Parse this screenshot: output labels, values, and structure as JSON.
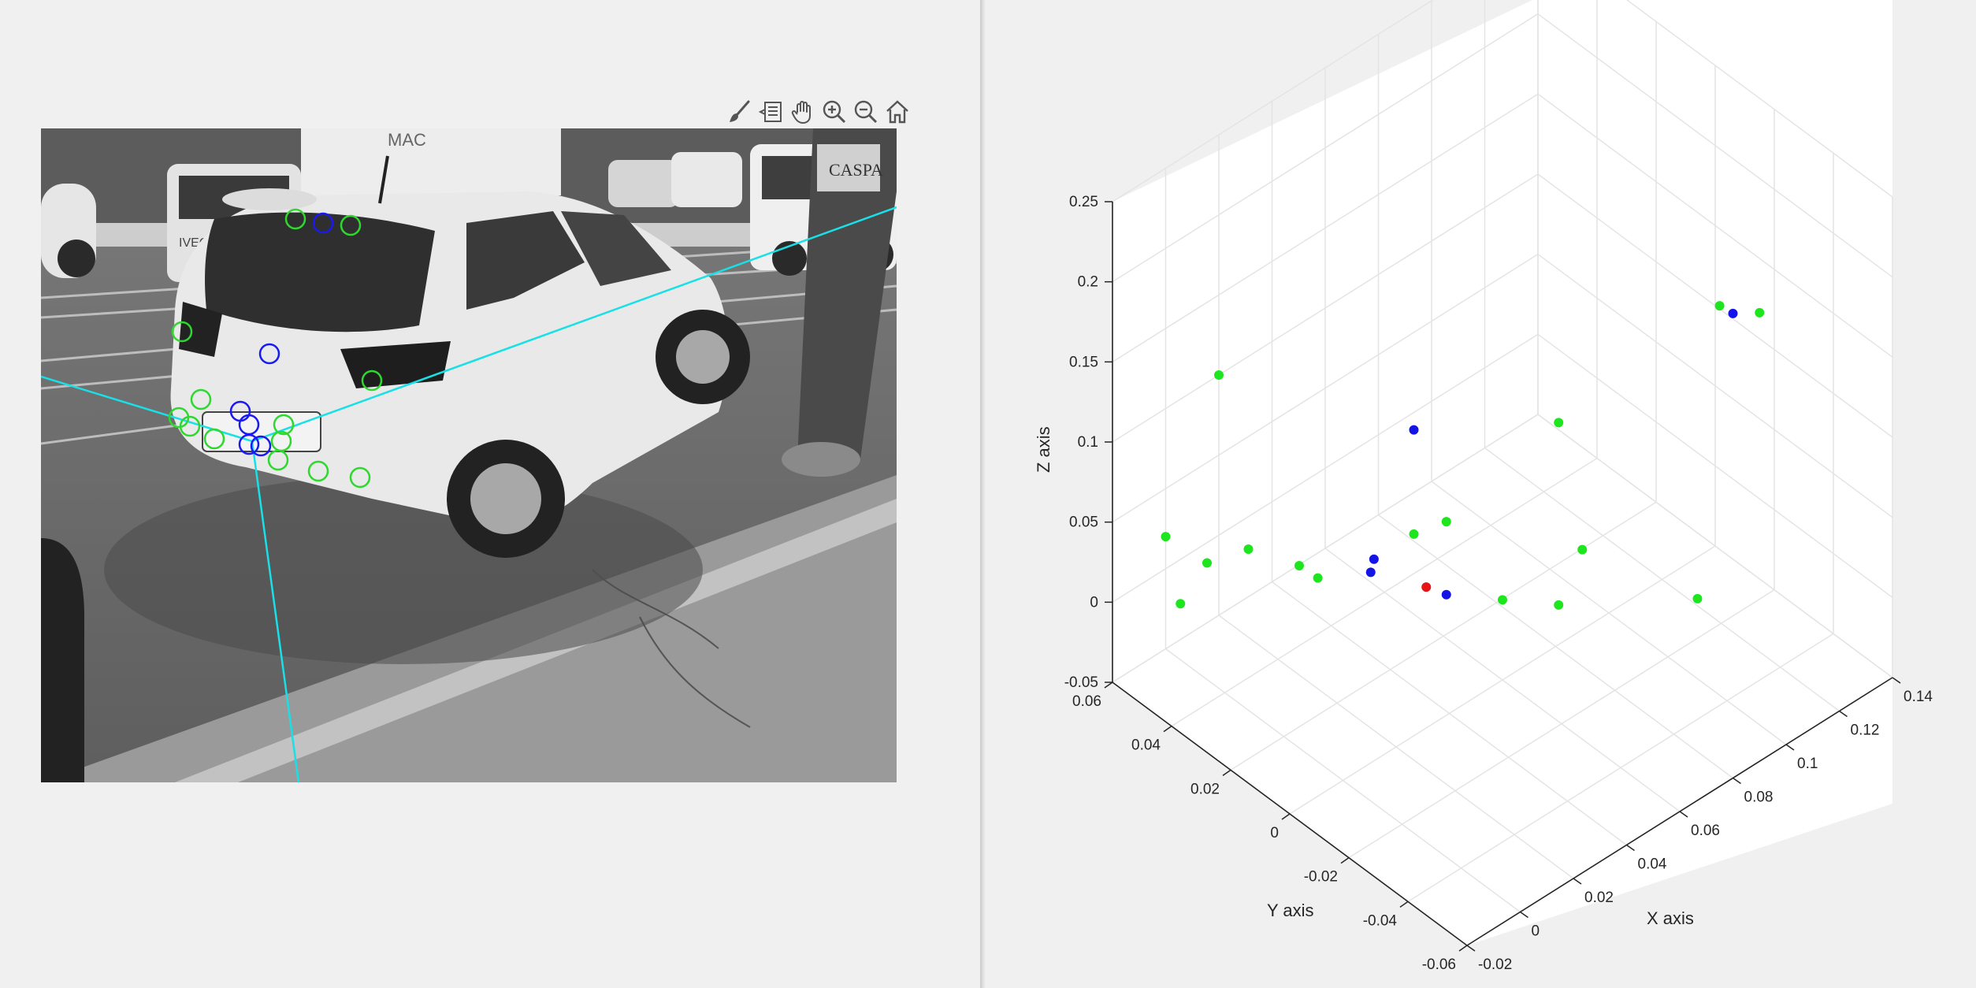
{
  "toolbar": {
    "buttons": [
      {
        "id": "brush",
        "icon": "brush-icon"
      },
      {
        "id": "datatips",
        "icon": "datatip-icon"
      },
      {
        "id": "pan",
        "icon": "hand-pan-icon"
      },
      {
        "id": "zoom_in",
        "icon": "zoom-in-icon"
      },
      {
        "id": "zoom_out",
        "icon": "zoom-out-icon"
      },
      {
        "id": "home",
        "icon": "home-icon"
      }
    ]
  },
  "image_axes": {
    "scene_signs": {
      "brand": "MAC",
      "van": "IVECO",
      "pole": "CASPA"
    },
    "colors": {
      "projected_lines": "#19e0e6",
      "green_markers": "#2ed82e",
      "blue_markers": "#1a1af0"
    }
  },
  "chart_data": {
    "type": "scatter3d",
    "xlabel": "X axis",
    "ylabel": "Y axis",
    "zlabel": "Z axis",
    "xlim": [
      -0.02,
      0.14
    ],
    "ylim": [
      -0.06,
      0.06
    ],
    "zlim": [
      -0.05,
      0.25
    ],
    "xticks": [
      "-0.02",
      "0",
      "0.02",
      "0.04",
      "0.06",
      "0.08",
      "0.1",
      "0.12",
      "0.14"
    ],
    "yticks": [
      "-0.06",
      "-0.04",
      "-0.02",
      "0",
      "0.02",
      "0.04",
      "0.06"
    ],
    "zticks": [
      "-0.05",
      "0",
      "0.05",
      "0.1",
      "0.15",
      "0.2",
      "0.25"
    ],
    "grid": true,
    "series": [
      {
        "color": "#1ee61e",
        "points": [
          [
            0.0,
            0.06,
            0.02
          ],
          [
            0.0,
            0.055,
            -0.015
          ],
          [
            0.01,
            0.055,
            0.0
          ],
          [
            0.02,
            0.05,
            0.005
          ],
          [
            0.028,
            0.04,
            0.0
          ],
          [
            0.035,
            0.04,
            -0.015
          ],
          [
            0.06,
            0.03,
            0.0
          ],
          [
            0.07,
            0.028,
            0.0
          ],
          [
            0.06,
            0.0,
            0.0
          ],
          [
            0.07,
            -0.01,
            0.0
          ],
          [
            0.09,
            0.0,
            0.0
          ],
          [
            0.1,
            -0.03,
            0.0
          ],
          [
            0.12,
            0.035,
            0.0
          ],
          [
            0.02,
            0.06,
            0.1
          ],
          [
            0.075,
            -0.06,
            0.25
          ],
          [
            0.09,
            -0.06,
            0.23
          ]
        ]
      },
      {
        "color": "#1414e6",
        "points": [
          [
            0.045,
            0.03,
            0.0
          ],
          [
            0.046,
            0.032,
            -0.012
          ],
          [
            0.05,
            0.01,
            0.0
          ],
          [
            0.06,
            0.03,
            0.065
          ],
          [
            0.08,
            -0.06,
            0.24
          ]
        ]
      },
      {
        "color": "#e61414",
        "points": [
          [
            0.048,
            0.015,
            0.0
          ]
        ]
      }
    ]
  }
}
